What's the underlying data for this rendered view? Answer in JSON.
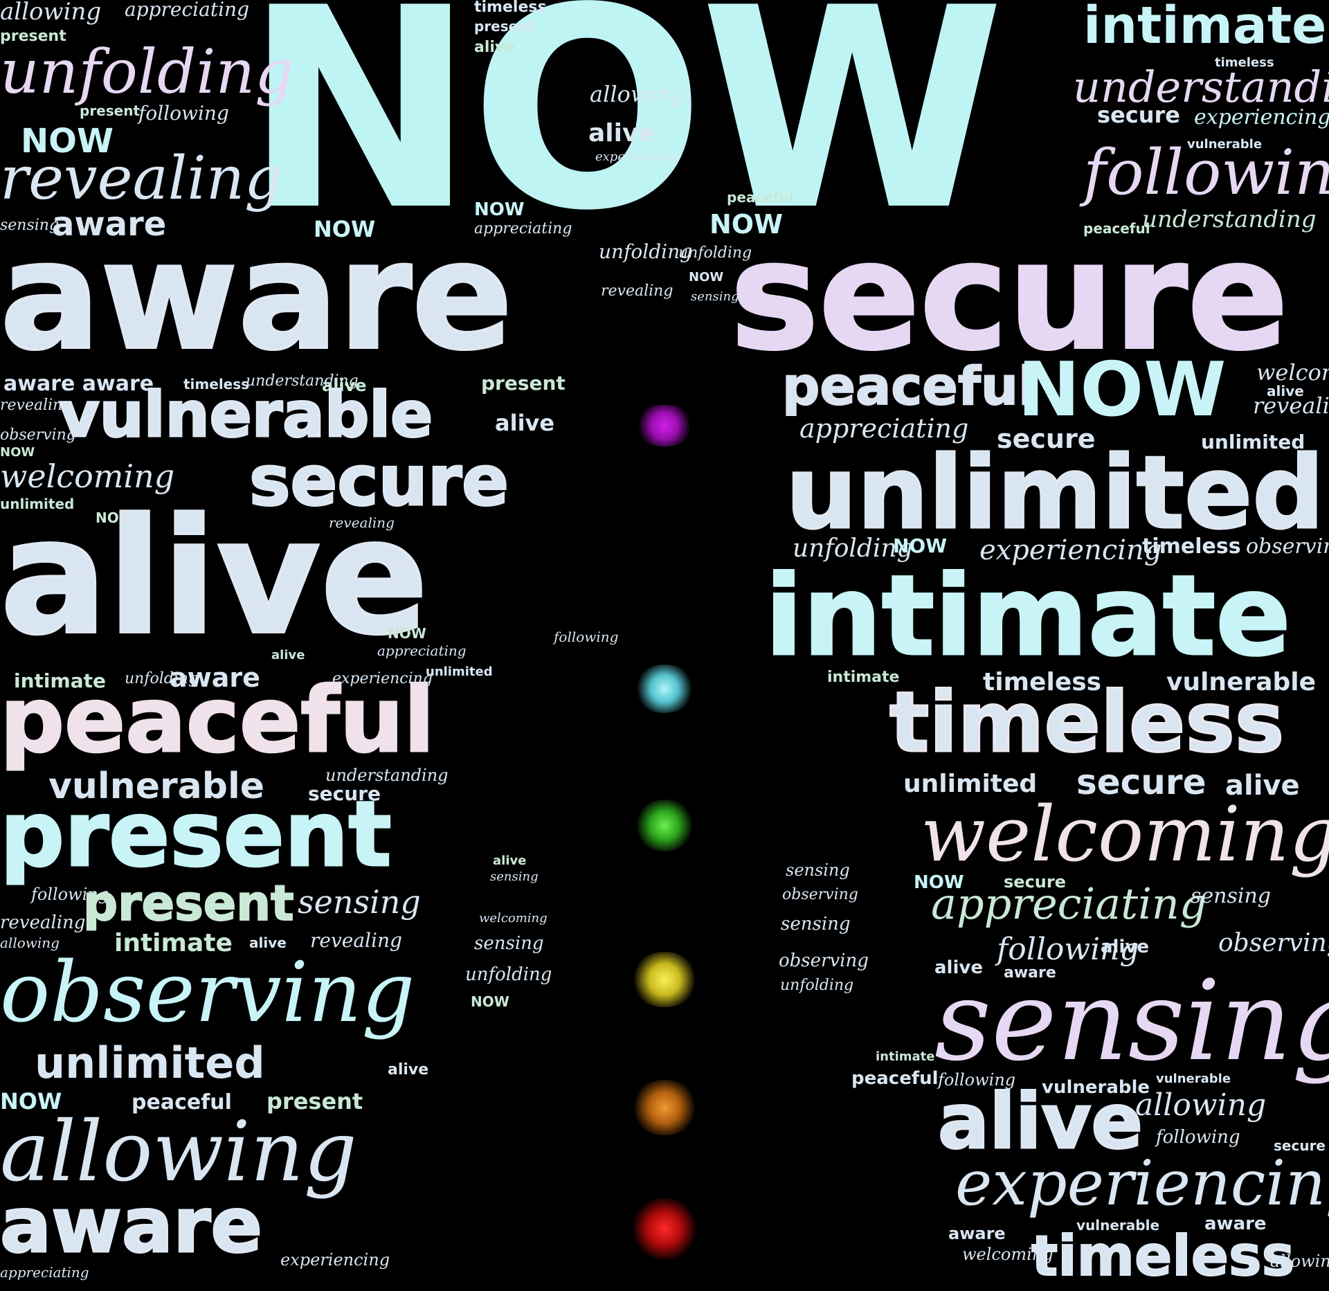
{
  "colors": {
    "background": "#000000",
    "title": "#bff4f5",
    "pale_blue": "#c8f4f7",
    "lavender": "#e6d8f2",
    "mint": "#c9e8d6"
  },
  "chakras": [
    {
      "name": "crown",
      "color": "#c21bd4"
    },
    {
      "name": "throat",
      "color": "#7fe6ef"
    },
    {
      "name": "heart",
      "color": "#4fdd3a"
    },
    {
      "name": "solar",
      "color": "#e7dc3a"
    },
    {
      "name": "sacral",
      "color": "#e37f1d"
    },
    {
      "name": "root",
      "color": "#e01414"
    }
  ],
  "words": {
    "now": "NOW",
    "aware": "aware",
    "secure": "secure",
    "alive": "alive",
    "peaceful": "peaceful",
    "present": "present",
    "observing": "observing",
    "unlimited": "unlimited",
    "allowing": "allowing",
    "intimate": "intimate",
    "timeless": "timeless",
    "welcoming": "welcoming",
    "sensing": "sensing",
    "experiencing": "experiencing",
    "vulnerable": "vulnerable",
    "unfolding": "unfolding",
    "revealing": "revealing",
    "understanding": "understanding",
    "following": "following",
    "appreciating": "appreciating",
    "aware_aware": "aware aware"
  }
}
